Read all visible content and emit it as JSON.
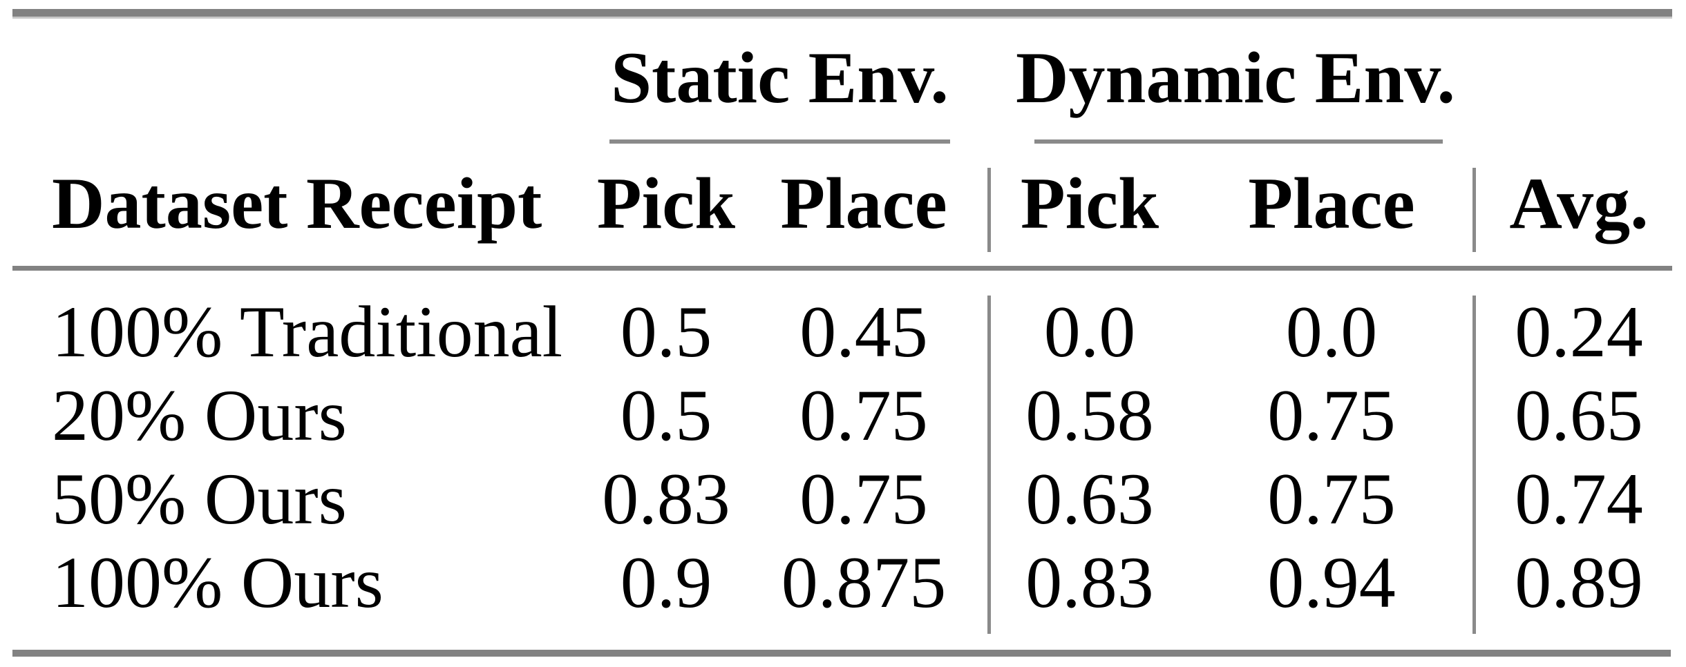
{
  "table": {
    "groups": [
      {
        "label": "Static Env."
      },
      {
        "label": "Dynamic Env."
      }
    ],
    "headers": [
      "Dataset Receipt",
      "Pick",
      "Place",
      "Pick",
      "Place",
      "Avg."
    ],
    "rows": [
      {
        "label": "100% Traditional",
        "values": [
          "0.5",
          "0.45",
          "0.0",
          "0.0",
          "0.24"
        ]
      },
      {
        "label": "20% Ours",
        "values": [
          "0.5",
          "0.75",
          "0.58",
          "0.75",
          "0.65"
        ]
      },
      {
        "label": "50% Ours",
        "values": [
          "0.83",
          "0.75",
          "0.63",
          "0.75",
          "0.74"
        ]
      },
      {
        "label": "100% Ours",
        "values": [
          "0.9",
          "0.875",
          "0.83",
          "0.94",
          "0.89"
        ]
      }
    ],
    "colors": {
      "rule": "#828282",
      "rule_light": "#c8c8c8",
      "text": "#000000",
      "background": "#ffffff"
    }
  }
}
